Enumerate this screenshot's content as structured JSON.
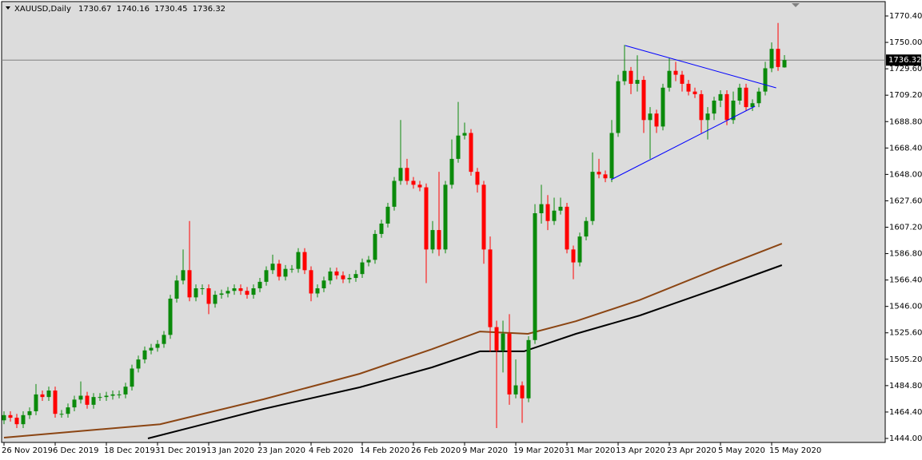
{
  "chart_data": {
    "type": "candlestick",
    "title": "XAUUSD,Daily",
    "categories": [
      "26 Nov 2019",
      null,
      null,
      null,
      null,
      null,
      null,
      null,
      "6 Dec 2019",
      null,
      null,
      null,
      null,
      null,
      null,
      null,
      "18 Dec 2019",
      null,
      null,
      null,
      null,
      null,
      null,
      null,
      "31 Dec 2019",
      null,
      null,
      null,
      null,
      null,
      null,
      null,
      "13 Jan 2020",
      null,
      null,
      null,
      null,
      null,
      null,
      null,
      "23 Jan 2020",
      null,
      null,
      null,
      null,
      null,
      null,
      null,
      "4 Feb 2020",
      null,
      null,
      null,
      null,
      null,
      null,
      null,
      "14 Feb 2020",
      null,
      null,
      null,
      null,
      null,
      null,
      null,
      "26 Feb 2020",
      null,
      null,
      null,
      null,
      null,
      null,
      null,
      "9 Mar 2020",
      null,
      null,
      null,
      null,
      null,
      null,
      null,
      "19 Mar 2020",
      null,
      null,
      null,
      null,
      null,
      null,
      null,
      "31 Mar 2020",
      null,
      null,
      null,
      null,
      null,
      null,
      null,
      "13 Apr 2020",
      null,
      null,
      null,
      null,
      null,
      null,
      null,
      "23 Apr 2020",
      null,
      null,
      null,
      null,
      null,
      null,
      null,
      "5 May 2020",
      null,
      null,
      null,
      null,
      null,
      null,
      null,
      "15 May 2020",
      null,
      null
    ],
    "open": [
      1458,
      1462,
      1460,
      1455,
      1462,
      1465,
      1478,
      1476,
      1481,
      1463,
      1463,
      1468,
      1474,
      1477,
      1470,
      1476,
      1476,
      1477,
      1478,
      1478,
      1484,
      1498,
      1505,
      1512,
      1514,
      1517,
      1524,
      1552,
      1566,
      1574,
      1553,
      1560,
      1560,
      1548,
      1555,
      1556,
      1558,
      1560,
      1558,
      1555,
      1560,
      1565,
      1574,
      1579,
      1569,
      1575,
      1575,
      1588,
      1574,
      1556,
      1560,
      1566,
      1573,
      1570,
      1567,
      1568,
      1571,
      1580,
      1582,
      1602,
      1610,
      1623,
      1643,
      1653,
      1643,
      1640,
      1638,
      1590,
      1605,
      1590,
      1640,
      1660,
      1678,
      1680,
      1650,
      1640,
      1590,
      1530,
      1512,
      1525,
      1478,
      1485,
      1475,
      1520,
      1618,
      1625,
      1612,
      1620,
      1623,
      1590,
      1580,
      1600,
      1612,
      1650,
      1648,
      1645,
      1680,
      1720,
      1728,
      1718,
      1721,
      1690,
      1695,
      1685,
      1715,
      1728,
      1725,
      1718,
      1712,
      1710,
      1690,
      1695,
      1705,
      1710,
      1690,
      1705,
      1715,
      1700,
      1703,
      1712,
      1730,
      1745,
      1730.67
    ],
    "high": [
      1465,
      1465,
      1463,
      1465,
      1468,
      1486,
      1481,
      1484,
      1484,
      1466,
      1471,
      1477,
      1488,
      1480,
      1479,
      1479,
      1480,
      1481,
      1481,
      1487,
      1501,
      1508,
      1515,
      1517,
      1520,
      1527,
      1555,
      1570,
      1590,
      1612,
      1563,
      1563,
      1563,
      1558,
      1559,
      1561,
      1563,
      1563,
      1561,
      1563,
      1568,
      1577,
      1586,
      1582,
      1578,
      1578,
      1591,
      1591,
      1577,
      1563,
      1569,
      1576,
      1576,
      1573,
      1571,
      1574,
      1583,
      1585,
      1605,
      1613,
      1626,
      1646,
      1690,
      1660,
      1646,
      1643,
      1641,
      1612,
      1650,
      1643,
      1675,
      1704,
      1688,
      1683,
      1653,
      1643,
      1600,
      1535,
      1535,
      1540,
      1505,
      1488,
      1523,
      1625,
      1640,
      1632,
      1630,
      1630,
      1626,
      1593,
      1603,
      1615,
      1665,
      1660,
      1651,
      1690,
      1725,
      1748,
      1731,
      1740,
      1724,
      1700,
      1698,
      1718,
      1738,
      1735,
      1728,
      1721,
      1715,
      1713,
      1700,
      1708,
      1713,
      1713,
      1712,
      1718,
      1718,
      1706,
      1715,
      1735,
      1750,
      1765,
      1740.16
    ],
    "low": [
      1455,
      1457,
      1452,
      1452,
      1459,
      1462,
      1473,
      1473,
      1460,
      1460,
      1460,
      1465,
      1471,
      1467,
      1467,
      1473,
      1473,
      1474,
      1475,
      1475,
      1481,
      1495,
      1502,
      1509,
      1511,
      1514,
      1521,
      1549,
      1563,
      1550,
      1550,
      1555,
      1540,
      1545,
      1552,
      1553,
      1555,
      1555,
      1552,
      1552,
      1557,
      1562,
      1571,
      1566,
      1566,
      1572,
      1572,
      1571,
      1550,
      1553,
      1557,
      1563,
      1567,
      1564,
      1564,
      1565,
      1568,
      1577,
      1579,
      1599,
      1607,
      1620,
      1640,
      1640,
      1637,
      1635,
      1564,
      1587,
      1585,
      1587,
      1637,
      1657,
      1675,
      1647,
      1634,
      1579,
      1511,
      1452,
      1495,
      1470,
      1475,
      1456,
      1472,
      1517,
      1610,
      1605,
      1609,
      1617,
      1587,
      1567,
      1577,
      1597,
      1609,
      1645,
      1642,
      1642,
      1677,
      1717,
      1710,
      1712,
      1680,
      1660,
      1680,
      1682,
      1712,
      1720,
      1712,
      1709,
      1707,
      1680,
      1675,
      1690,
      1700,
      1686,
      1687,
      1702,
      1697,
      1697,
      1700,
      1709,
      1727,
      1728,
      1730.45
    ],
    "close": [
      1462,
      1460,
      1455,
      1462,
      1465,
      1478,
      1476,
      1481,
      1463,
      1463,
      1468,
      1474,
      1477,
      1470,
      1476,
      1476,
      1477,
      1478,
      1478,
      1484,
      1498,
      1505,
      1512,
      1514,
      1517,
      1524,
      1552,
      1566,
      1574,
      1553,
      1560,
      1560,
      1548,
      1555,
      1556,
      1558,
      1560,
      1558,
      1555,
      1560,
      1565,
      1574,
      1579,
      1569,
      1575,
      1575,
      1588,
      1574,
      1556,
      1560,
      1566,
      1573,
      1570,
      1567,
      1568,
      1571,
      1580,
      1582,
      1602,
      1610,
      1623,
      1643,
      1653,
      1643,
      1640,
      1638,
      1590,
      1605,
      1590,
      1640,
      1660,
      1678,
      1680,
      1650,
      1640,
      1590,
      1530,
      1512,
      1525,
      1478,
      1485,
      1475,
      1520,
      1618,
      1625,
      1612,
      1620,
      1623,
      1590,
      1580,
      1600,
      1612,
      1650,
      1648,
      1645,
      1680,
      1720,
      1728,
      1718,
      1721,
      1690,
      1695,
      1685,
      1715,
      1728,
      1725,
      1718,
      1712,
      1710,
      1690,
      1695,
      1705,
      1710,
      1690,
      1705,
      1715,
      1700,
      1703,
      1712,
      1730,
      1745,
      1731,
      1736.32
    ],
    "up_color": "#0b8a0b",
    "down_color": "#ff0000",
    "ylim": [
      1440.91,
      1781.51
    ],
    "yticks": [
      {
        "value": 1770.4,
        "label": "1770.40"
      },
      {
        "value": 1750,
        "label": "1750.00"
      },
      {
        "value": 1729.6,
        "label": "1729.60"
      },
      {
        "value": 1709.2,
        "label": "1709.20"
      },
      {
        "value": 1688.8,
        "label": "1688.80"
      },
      {
        "value": 1668.4,
        "label": "1668.40"
      },
      {
        "value": 1648,
        "label": "1648.00"
      },
      {
        "value": 1627.6,
        "label": "1627.60"
      },
      {
        "value": 1607.2,
        "label": "1607.20"
      },
      {
        "value": 1586.8,
        "label": "1586.80"
      },
      {
        "value": 1566.4,
        "label": "1566.40"
      },
      {
        "value": 1546,
        "label": "1546.00"
      },
      {
        "value": 1525.6,
        "label": "1525.60"
      },
      {
        "value": 1505.2,
        "label": "1505.20"
      },
      {
        "value": 1484.8,
        "label": "1484.80"
      },
      {
        "value": 1464.4,
        "label": "1464.40"
      },
      {
        "value": 1444,
        "label": "1444.00"
      }
    ],
    "lines": [
      {
        "color": "#8b4513",
        "x": [
          0,
          24.4,
          40.6,
          55.6,
          66.9,
          74.4,
          81.9,
          89.4,
          99.4,
          111.9,
          121.6
        ],
        "values": [
          1444.6,
          1455,
          1474.3,
          1494,
          1513,
          1526.6,
          1524.8,
          1534.6,
          1551,
          1575.9,
          1594.5
        ]
      },
      {
        "color": "#000000",
        "x": [
          22.5,
          40.6,
          55.6,
          66.9,
          74.4,
          81.3,
          89.4,
          99.4,
          111.9,
          121.6
        ],
        "values": [
          1444,
          1466.8,
          1483.5,
          1498.9,
          1511.3,
          1511.3,
          1524.8,
          1539,
          1560.6,
          1577.9
        ]
      }
    ],
    "trendlines": [
      {
        "color": "#0000ff",
        "x": [
          97.1,
          120.7
        ],
        "values": [
          1747.6,
          1714.9
        ]
      },
      {
        "color": "#0000ff",
        "x": [
          94.9,
          117.4
        ],
        "values": [
          1643.9,
          1700.7
        ]
      }
    ]
  }
}
